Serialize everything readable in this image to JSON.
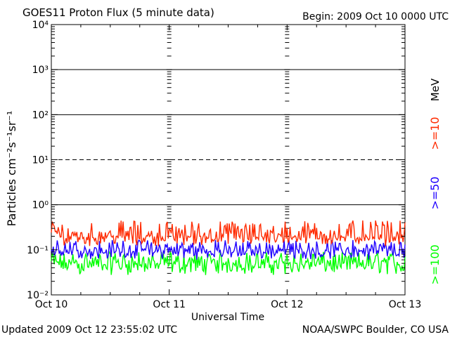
{
  "header": {
    "title": "GOES11 Proton Flux (5 minute data)",
    "begin": "Begin: 2009 Oct 10 0000 UTC"
  },
  "footer": {
    "updated": "Updated 2009 Oct 12 23:55:02 UTC",
    "credit": "NOAA/SWPC Boulder, CO USA"
  },
  "chart_data": {
    "type": "line",
    "title": "GOES11 Proton Flux (5 minute data)",
    "xlabel": "Universal Time",
    "ylabel": "Particles cm⁻²s⁻¹sr⁻¹",
    "yscale": "log",
    "ylim": [
      0.01,
      10000
    ],
    "ytick_labels": [
      "10⁻²",
      "10⁻¹",
      "10⁰",
      "10¹",
      "10²",
      "10³",
      "10⁴"
    ],
    "x_ticks": [
      "Oct 10",
      "Oct 11",
      "Oct 12",
      "Oct 13"
    ],
    "x_range": [
      "2009 Oct 10 0000 UTC",
      "2009 Oct 13 0000 UTC"
    ],
    "right_legend": {
      "unit": "MeV",
      "entries": [
        {
          "label": ">=10",
          "color": "#ff2a00"
        },
        {
          "label": ">=50",
          "color": "#1f00ff"
        },
        {
          "label": ">=100",
          "color": "#00ff00"
        }
      ]
    },
    "series": [
      {
        "label": ">=10",
        "color": "#ff2a00",
        "typical_range": [
          0.12,
          0.45
        ],
        "median": 0.2
      },
      {
        "label": ">=50",
        "color": "#1f00ff",
        "typical_range": [
          0.06,
          0.17
        ],
        "median": 0.095
      },
      {
        "label": ">=100",
        "color": "#00ff00",
        "typical_range": [
          0.027,
          0.09
        ],
        "median": 0.05
      }
    ],
    "reference_lines": {
      "solid": [
        1,
        100,
        1000
      ],
      "dashed": [
        10
      ]
    },
    "grid": false
  }
}
